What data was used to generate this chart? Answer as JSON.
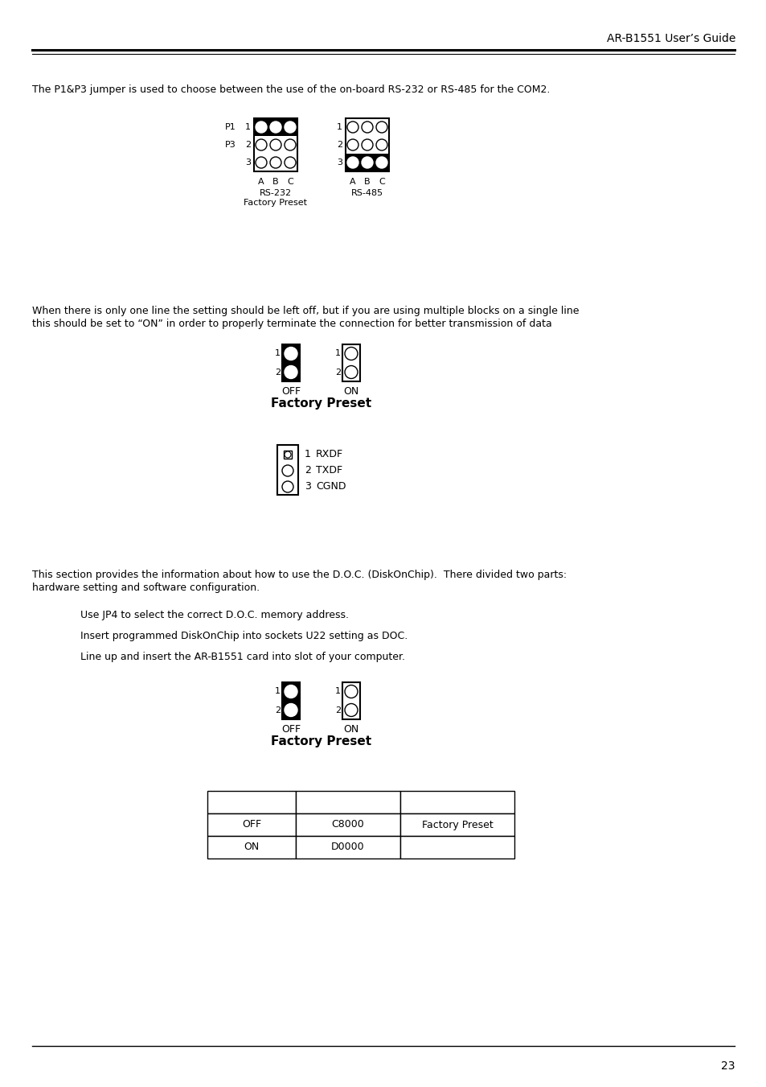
{
  "header_text": "AR-B1551 User’s Guide",
  "page_number": "23",
  "bg_color": "#ffffff",
  "text_color": "#000000",
  "para1": "The P1&P3 jumper is used to choose between the use of the on-board RS-232 or RS-485 for the COM2.",
  "para2_line1": "When there is only one line the setting should be left off, but if you are using multiple blocks on a single line",
  "para2_line2": "this should be set to “ON” in order to properly terminate the connection for better transmission of data",
  "label_rs232": "RS-232",
  "label_factory_preset1": "Factory Preset",
  "label_rs485": "RS-485",
  "label_off": "OFF",
  "label_on": "ON",
  "label_factory_preset2": "Factory Preset",
  "label_rxdf": "RXDF",
  "label_txdf": "TXDF",
  "label_cgnd": "CGND",
  "para3_line1": "This section provides the information about how to use the D.O.C. (DiskOnChip).  There divided two parts:",
  "para3_line2": "hardware setting and software configuration.",
  "bullet1": "Use JP4 to select the correct D.O.C. memory address.",
  "bullet2": "Insert programmed DiskOnChip into sockets U22 setting as DOC.",
  "bullet3": "Line up and insert the AR-B1551 card into slot of your computer.",
  "label_off2": "OFF",
  "label_on2": "ON",
  "label_factory_preset3": "Factory Preset",
  "table_headers": [
    "",
    "",
    ""
  ],
  "table_row1": [
    "OFF",
    "C8000",
    "Factory Preset"
  ],
  "table_row2": [
    "ON",
    "D0000",
    ""
  ],
  "header_fontsize": 10,
  "body_fontsize": 9,
  "small_fontsize": 8,
  "fp_fontsize": 11
}
